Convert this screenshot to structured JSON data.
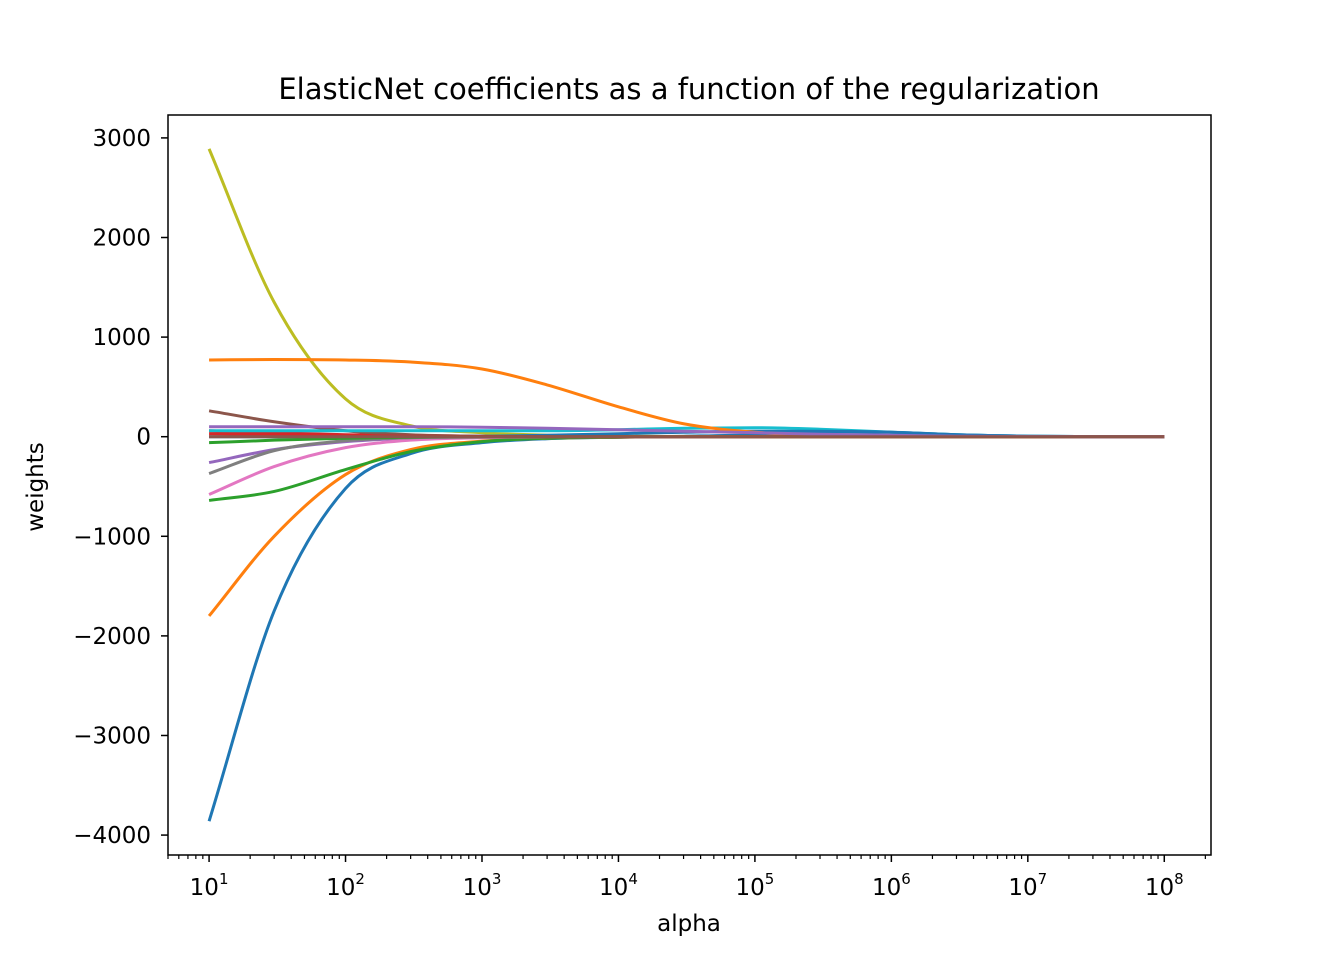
{
  "chart_data": {
    "type": "line",
    "title": "ElasticNet coefficients as a function of the regularization",
    "xlabel": "alpha",
    "ylabel": "weights",
    "x_scale": "log",
    "xlim": [
      5,
      220000000
    ],
    "ylim": [
      -4200,
      3230
    ],
    "grid": false,
    "legend": "none",
    "x_ticks": [
      {
        "base": "10",
        "exp": "1",
        "value": 10
      },
      {
        "base": "10",
        "exp": "2",
        "value": 100
      },
      {
        "base": "10",
        "exp": "3",
        "value": 1000
      },
      {
        "base": "10",
        "exp": "4",
        "value": 10000
      },
      {
        "base": "10",
        "exp": "5",
        "value": 100000
      },
      {
        "base": "10",
        "exp": "6",
        "value": 1000000
      },
      {
        "base": "10",
        "exp": "7",
        "value": 10000000
      },
      {
        "base": "10",
        "exp": "8",
        "value": 100000000
      }
    ],
    "y_ticks": [
      {
        "label": "3000",
        "value": 3000
      },
      {
        "label": "2000",
        "value": 2000
      },
      {
        "label": "1000",
        "value": 1000
      },
      {
        "label": "0",
        "value": 0
      },
      {
        "label": "−1000",
        "value": -1000
      },
      {
        "label": "−2000",
        "value": -2000
      },
      {
        "label": "−3000",
        "value": -3000
      },
      {
        "label": "−4000",
        "value": -4000
      }
    ],
    "x": [
      10,
      30,
      100,
      300,
      1000,
      3000,
      10000,
      30000,
      100000,
      300000,
      1000000,
      3000000,
      10000000,
      30000000,
      100000000
    ],
    "series": [
      {
        "color": "#1f77b4",
        "values": [
          -3860,
          -1750,
          -520,
          -170,
          -60,
          -20,
          -5,
          5,
          20,
          50,
          45,
          20,
          5,
          1,
          0
        ]
      },
      {
        "color": "#ff7f0e",
        "values": [
          -1800,
          -1000,
          -380,
          -130,
          -45,
          -15,
          -5,
          0,
          0,
          0,
          0,
          0,
          0,
          0,
          0
        ]
      },
      {
        "color": "#2ca02c",
        "values": [
          -640,
          -550,
          -330,
          -150,
          -50,
          -15,
          -5,
          0,
          0,
          0,
          0,
          0,
          0,
          0,
          0
        ]
      },
      {
        "color": "#d62728",
        "values": [
          60,
          40,
          20,
          10,
          5,
          2,
          0,
          0,
          0,
          0,
          0,
          0,
          0,
          0,
          0
        ]
      },
      {
        "color": "#9467bd",
        "values": [
          -260,
          -130,
          -50,
          -15,
          -5,
          0,
          0,
          0,
          0,
          0,
          0,
          0,
          0,
          0,
          0
        ]
      },
      {
        "color": "#8c564b",
        "values": [
          260,
          150,
          60,
          20,
          5,
          0,
          0,
          0,
          0,
          0,
          0,
          0,
          0,
          0,
          0
        ]
      },
      {
        "color": "#e377c2",
        "values": [
          -580,
          -300,
          -110,
          -35,
          -10,
          -3,
          0,
          0,
          0,
          0,
          0,
          0,
          0,
          0,
          0
        ]
      },
      {
        "color": "#7f7f7f",
        "values": [
          -370,
          -140,
          -40,
          -10,
          -3,
          0,
          0,
          0,
          0,
          0,
          0,
          0,
          0,
          0,
          0
        ]
      },
      {
        "color": "#bcbd22",
        "values": [
          2890,
          1350,
          380,
          110,
          40,
          15,
          5,
          2,
          0,
          0,
          0,
          0,
          0,
          0,
          0
        ]
      },
      {
        "color": "#17becf",
        "values": [
          60,
          60,
          60,
          60,
          60,
          60,
          70,
          85,
          90,
          75,
          45,
          20,
          5,
          1,
          0
        ]
      },
      {
        "color": "#1f77b4",
        "values": [
          0,
          0,
          0,
          0,
          5,
          15,
          30,
          45,
          55,
          55,
          45,
          20,
          5,
          1,
          0
        ]
      },
      {
        "color": "#ff7f0e",
        "values": [
          770,
          775,
          770,
          750,
          680,
          520,
          300,
          130,
          45,
          15,
          5,
          2,
          0,
          0,
          0
        ]
      },
      {
        "color": "#2ca02c",
        "values": [
          -60,
          -35,
          -15,
          -5,
          0,
          0,
          0,
          0,
          0,
          0,
          0,
          0,
          0,
          0,
          0
        ]
      },
      {
        "color": "#d62728",
        "values": [
          30,
          20,
          10,
          5,
          2,
          0,
          0,
          0,
          0,
          0,
          0,
          0,
          0,
          0,
          0
        ]
      },
      {
        "color": "#9467bd",
        "values": [
          100,
          100,
          100,
          100,
          95,
          85,
          70,
          55,
          40,
          25,
          15,
          5,
          2,
          0,
          0
        ]
      },
      {
        "color": "#8c564b",
        "values": [
          0,
          0,
          0,
          0,
          0,
          0,
          0,
          0,
          0,
          0,
          0,
          0,
          0,
          0,
          0
        ]
      }
    ]
  }
}
